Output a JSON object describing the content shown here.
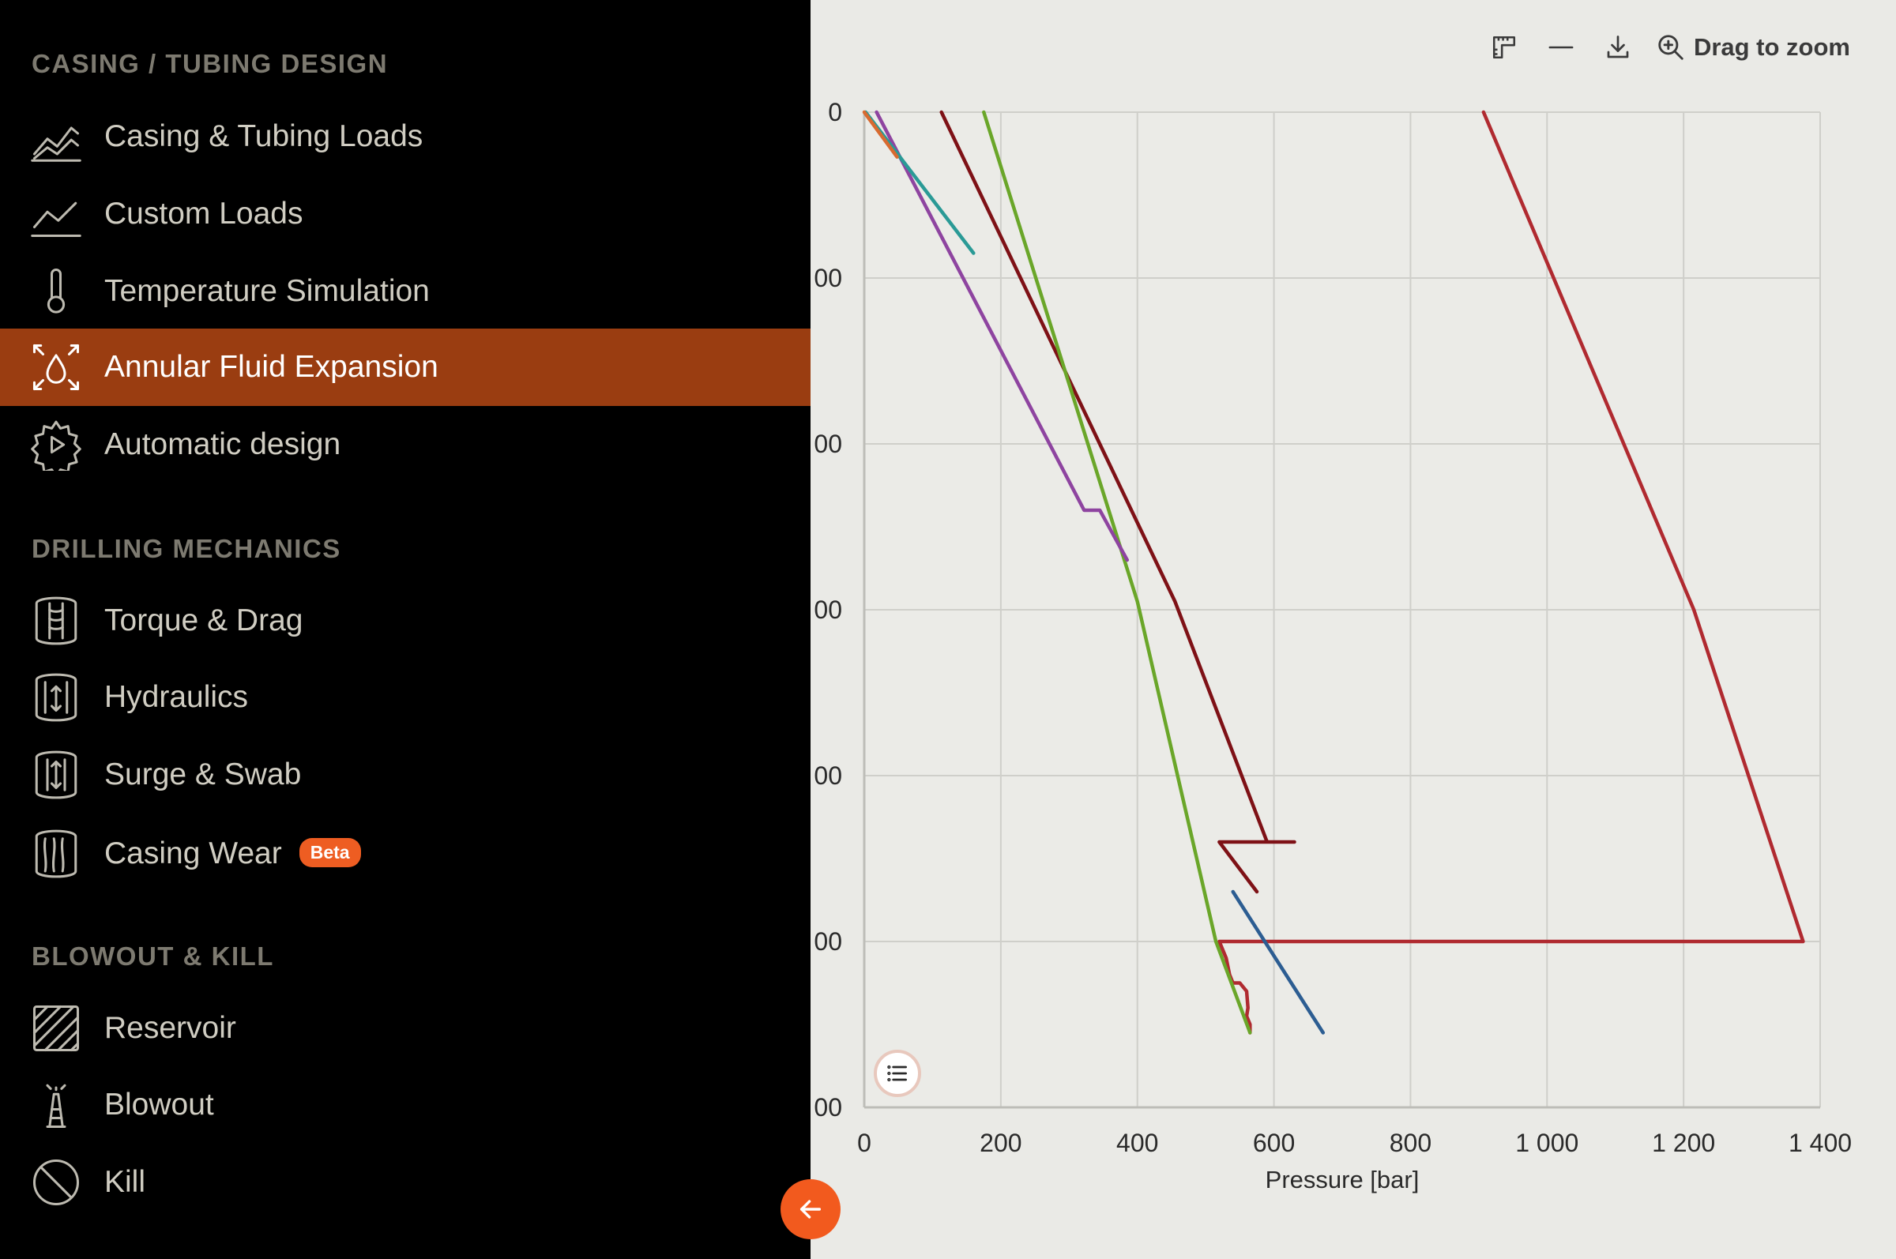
{
  "sidebar": {
    "sections": [
      {
        "title": "CASING / TUBING DESIGN",
        "items": [
          {
            "label": "Casing & Tubing Loads",
            "icon": "area-chart-icon"
          },
          {
            "label": "Custom Loads",
            "icon": "line-chart-icon"
          },
          {
            "label": "Temperature Simulation",
            "icon": "thermometer-icon"
          },
          {
            "label": "Annular Fluid Expansion",
            "icon": "fluid-expansion-icon",
            "active": true
          },
          {
            "label": "Automatic design",
            "icon": "gear-play-icon"
          }
        ]
      },
      {
        "title": "DRILLING MECHANICS",
        "items": [
          {
            "label": "Torque & Drag",
            "icon": "drill-pipe-icon"
          },
          {
            "label": "Hydraulics",
            "icon": "hydraulics-icon"
          },
          {
            "label": "Surge & Swab",
            "icon": "surge-swab-icon"
          },
          {
            "label": "Casing Wear",
            "icon": "casing-wear-icon",
            "badge": "Beta"
          }
        ]
      },
      {
        "title": "BLOWOUT & KILL",
        "items": [
          {
            "label": "Reservoir",
            "icon": "hatched-square-icon"
          },
          {
            "label": "Blowout",
            "icon": "derrick-icon"
          },
          {
            "label": "Kill",
            "icon": "prohibited-icon"
          }
        ]
      }
    ],
    "collapse_icon": "arrow-left-icon"
  },
  "toolbar": {
    "zoom_label": "Drag to zoom",
    "icons": [
      "ruler-icon",
      "minus-icon",
      "download-icon",
      "zoom-in-icon"
    ]
  },
  "legend_toggle_icon": "list-icon",
  "colors": {
    "sidebar_bg": "#000000",
    "active_bg": "#9a3d11",
    "accent": "#f25a1e",
    "chart_bg": "#eaeae6"
  },
  "chart_data": {
    "type": "line",
    "xlabel": "Pressure [bar]",
    "ylabel": "",
    "xlim": [
      0,
      1400
    ],
    "ylim": [
      0,
      6000
    ],
    "y_inverted": true,
    "grid": true,
    "x_ticks": [
      0,
      200,
      400,
      600,
      800,
      1000,
      1200,
      1400
    ],
    "x_tick_labels": [
      "0",
      "200",
      "400",
      "600",
      "800",
      "1 000",
      "1 200",
      "1 400"
    ],
    "y_ticks": [
      0,
      1000,
      2000,
      3000,
      4000,
      5000,
      6000
    ],
    "y_tick_labels": [
      "0",
      "00",
      "00",
      "00",
      "00",
      "00",
      "00"
    ],
    "series": [
      {
        "color": "#b02a30",
        "points": [
          [
            907,
            0
          ],
          [
            1215,
            3000
          ],
          [
            1375,
            5000
          ],
          [
            520,
            5000
          ],
          [
            530,
            5100
          ],
          [
            535,
            5200
          ],
          [
            540,
            5250
          ],
          [
            550,
            5250
          ],
          [
            560,
            5300
          ],
          [
            562,
            5400
          ],
          [
            560,
            5450
          ],
          [
            565,
            5500
          ],
          [
            565,
            5550
          ]
        ]
      },
      {
        "color": "#7e1116",
        "points": [
          [
            113,
            0
          ],
          [
            455,
            2950
          ],
          [
            590,
            4400
          ],
          [
            630,
            4400
          ],
          [
            520,
            4400
          ],
          [
            575,
            4700
          ]
        ]
      },
      {
        "color": "#6aa629",
        "points": [
          [
            175,
            0
          ],
          [
            400,
            2950
          ],
          [
            515,
            5000
          ],
          [
            565,
            5550
          ]
        ]
      },
      {
        "color": "#8e44a0",
        "points": [
          [
            18,
            0
          ],
          [
            322,
            2400
          ],
          [
            345,
            2400
          ],
          [
            385,
            2700
          ]
        ]
      },
      {
        "color": "#2a9a96",
        "points": [
          [
            2,
            0
          ],
          [
            160,
            850
          ]
        ]
      },
      {
        "color": "#d86a30",
        "points": [
          [
            0,
            0
          ],
          [
            48,
            270
          ]
        ]
      },
      {
        "color": "#2c5d92",
        "points": [
          [
            540,
            4700
          ],
          [
            672,
            5550
          ]
        ]
      }
    ]
  }
}
